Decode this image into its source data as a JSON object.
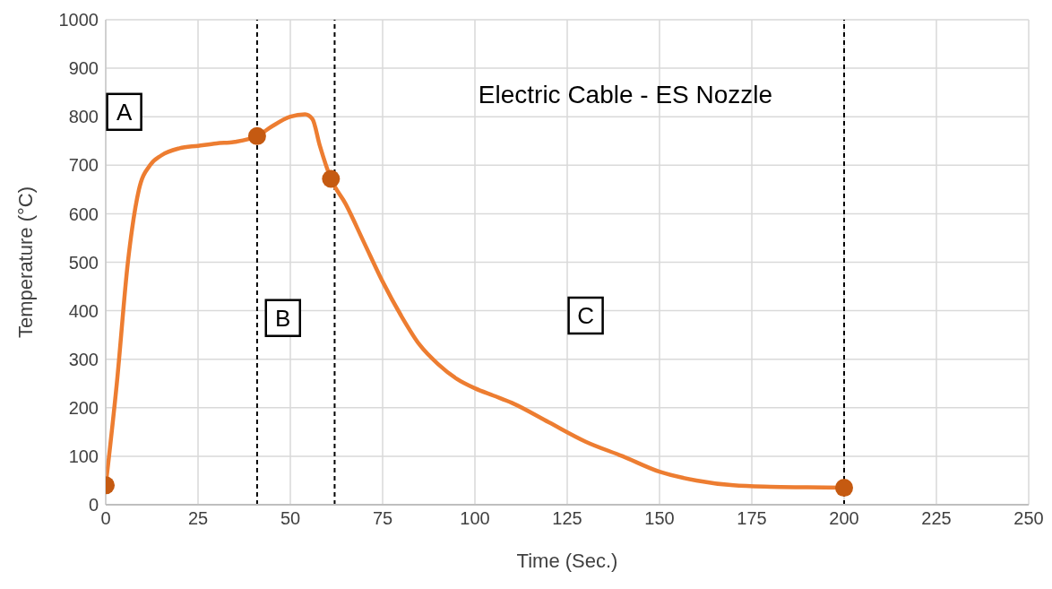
{
  "chart_data": {
    "type": "line",
    "title": "Electric Cable - ES Nozzle",
    "xlabel": "Time (Sec.)",
    "ylabel": "Temperature (°C)",
    "xlim": [
      0,
      250
    ],
    "xticks": [
      0,
      25,
      50,
      75,
      100,
      125,
      150,
      175,
      200,
      225,
      250
    ],
    "ylim": [
      0,
      1000
    ],
    "yticks": [
      0,
      100,
      200,
      300,
      400,
      500,
      600,
      700,
      800,
      900,
      1000
    ],
    "grid": true,
    "line_style": "solid",
    "series": [
      {
        "color": "#ed7d31",
        "marker": "none",
        "x": [
          0,
          3,
          6,
          9,
          12,
          15,
          20,
          25,
          30,
          35,
          41,
          45,
          50,
          54,
          56,
          58,
          61,
          65,
          70,
          75,
          80,
          85,
          90,
          95,
          100,
          105,
          110,
          120,
          130,
          140,
          150,
          160,
          170,
          180,
          190,
          200
        ],
        "values": [
          40,
          250,
          500,
          650,
          700,
          720,
          735,
          740,
          745,
          748,
          760,
          780,
          800,
          805,
          795,
          740,
          672,
          620,
          540,
          460,
          390,
          330,
          290,
          260,
          240,
          225,
          210,
          170,
          130,
          100,
          68,
          50,
          40,
          37,
          36,
          35
        ]
      },
      {
        "type": "scatter",
        "color": "#c55a11",
        "marker": "circle",
        "x": [
          0,
          41,
          61,
          200
        ],
        "values": [
          40,
          760,
          672,
          35
        ]
      }
    ],
    "ref_lines": [
      {
        "axis": "x",
        "value": 41,
        "color": "#000000",
        "line_style": "dashed"
      },
      {
        "axis": "x",
        "value": 62,
        "color": "#000000",
        "line_style": "dashed"
      },
      {
        "axis": "x",
        "value": 200,
        "color": "#000000",
        "line_style": "dashed"
      }
    ],
    "annotations": [
      {
        "text": "A",
        "x": 5,
        "y": 810
      },
      {
        "text": "B",
        "x": 48,
        "y": 385
      },
      {
        "text": "C",
        "x": 130,
        "y": 390
      }
    ]
  }
}
